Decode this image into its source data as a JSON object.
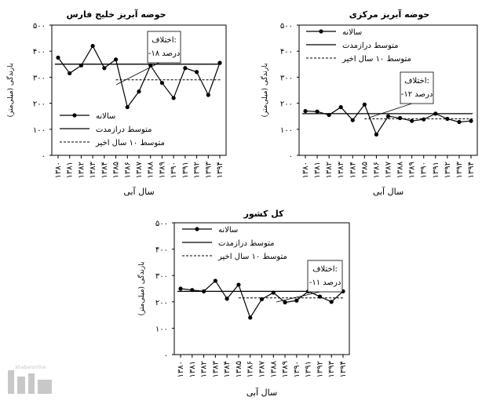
{
  "chart_data": [
    {
      "type": "line",
      "title": "حوضه آبریز خلیج فارس",
      "xlabel": "سال آبی",
      "ylabel": "بارندگی (میلی‌متر)",
      "ylim": [
        0,
        500
      ],
      "yticks": [
        "۰",
        "۱۰۰",
        "۲۰۰",
        "۳۰۰",
        "۴۰۰",
        "۵۰۰"
      ],
      "categories": [
        "۱۳۸۰",
        "۱۳۸۱",
        "۱۳۸۲",
        "۱۳۸۳",
        "۱۳۸۴",
        "۱۳۸۵",
        "۱۳۸۶",
        "۱۳۸۷",
        "۱۳۸۸",
        "۱۳۸۹",
        "۱۳۹۰",
        "۱۳۹۱",
        "۱۳۹۲",
        "۱۳۹۳",
        "۱۳۹۴"
      ],
      "series": [
        {
          "name": "سالانه",
          "style": "line-marker",
          "values": [
            375,
            315,
            345,
            420,
            335,
            368,
            185,
            245,
            345,
            278,
            220,
            335,
            320,
            232,
            355
          ]
        },
        {
          "name": "متوسط درازمدت",
          "style": "solid",
          "value": 350,
          "range": [
            "۱۳۸۰",
            "۱۳۹۴"
          ]
        },
        {
          "name": "متوسط ۱۰ سال اخیر",
          "style": "dashed",
          "value": 290,
          "range": [
            "۱۳۸۵",
            "۱۳۹۴"
          ]
        }
      ],
      "annotation": {
        "title": "اختلاف:",
        "value": "-۱۸ درصد"
      }
    },
    {
      "type": "line",
      "title": "حوضه آبریز مرکزی",
      "xlabel": "سال آبی",
      "ylabel": "بارندگی (میلی‌متر)",
      "ylim": [
        0,
        500
      ],
      "yticks": [
        "۰",
        "۱۰۰",
        "۲۰۰",
        "۳۰۰",
        "۴۰۰",
        "۵۰۰"
      ],
      "categories": [
        "۱۳۸۰",
        "۱۳۸۱",
        "۱۳۸۲",
        "۱۳۸۳",
        "۱۳۸۴",
        "۱۳۸۵",
        "۱۳۸۶",
        "۱۳۸۷",
        "۱۳۸۸",
        "۱۳۸۹",
        "۱۳۹۰",
        "۱۳۹۱",
        "۱۳۹۲",
        "۱۳۹۳",
        "۱۳۹۴"
      ],
      "series": [
        {
          "name": "سالانه",
          "style": "line-marker",
          "values": [
            170,
            168,
            155,
            185,
            135,
            195,
            80,
            150,
            143,
            132,
            138,
            160,
            140,
            128,
            132
          ]
        },
        {
          "name": "متوسط درازمدت",
          "style": "solid",
          "value": 160,
          "range": [
            "۱۳۸۰",
            "۱۳۹۴"
          ]
        },
        {
          "name": "متوسط ۱۰ سال اخیر",
          "style": "dashed",
          "value": 140,
          "range": [
            "۱۳۸۵",
            "۱۳۹۴"
          ]
        }
      ],
      "annotation": {
        "title": "اختلاف:",
        "value": "-۱۲ درصد"
      }
    },
    {
      "type": "line",
      "title": "کل کشور",
      "xlabel": "سال آبی",
      "ylabel": "بارندگی (میلی‌متر)",
      "ylim": [
        0,
        500
      ],
      "yticks": [
        "۰",
        "۱۰۰",
        "۲۰۰",
        "۳۰۰",
        "۴۰۰",
        "۵۰۰"
      ],
      "categories": [
        "۱۳۸۰",
        "۱۳۸۱",
        "۱۳۸۲",
        "۱۳۸۳",
        "۱۳۸۴",
        "۱۳۸۵",
        "۱۳۸۶",
        "۱۳۸۷",
        "۱۳۸۸",
        "۱۳۸۹",
        "۱۳۹۰",
        "۱۳۹۱",
        "۱۳۹۲",
        "۱۳۹۳",
        "۱۳۹۴"
      ],
      "series": [
        {
          "name": "سالانه",
          "style": "line-marker",
          "values": [
            250,
            245,
            240,
            280,
            212,
            265,
            140,
            210,
            235,
            198,
            205,
            240,
            220,
            200,
            240
          ]
        },
        {
          "name": "متوسط درازمدت",
          "style": "solid",
          "value": 240,
          "range": [
            "۱۳۸۰",
            "۱۳۹۴"
          ]
        },
        {
          "name": "متوسط ۱۰ سال اخیر",
          "style": "dashed",
          "value": 215,
          "range": [
            "۱۳۸۵",
            "۱۳۹۴"
          ]
        }
      ],
      "annotation": {
        "title": "اختلاف:",
        "value": "-۱۱ درصد"
      }
    }
  ],
  "watermark": {
    "text": "خبرآنلاین",
    "color": "#b0b0b0"
  }
}
